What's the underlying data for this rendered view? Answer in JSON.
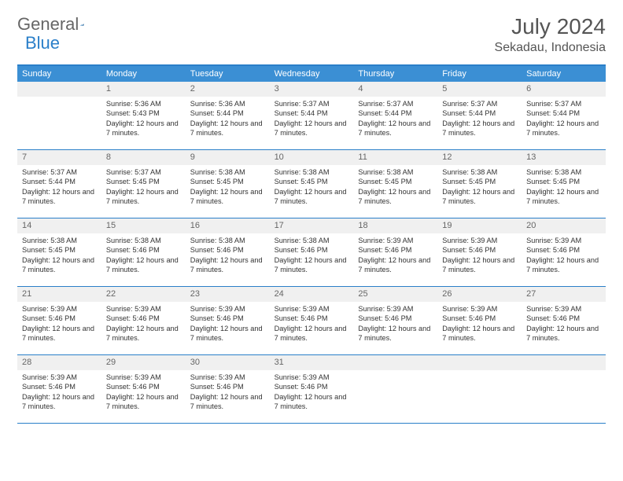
{
  "logo": {
    "general": "General",
    "blue": "Blue"
  },
  "title": "July 2024",
  "location": "Sekadau, Indonesia",
  "weekdays": [
    "Sunday",
    "Monday",
    "Tuesday",
    "Wednesday",
    "Thursday",
    "Friday",
    "Saturday"
  ],
  "colors": {
    "header_bar": "#3b8fd4",
    "rule": "#2a7fc9",
    "daynum_bg": "#f0f0f0",
    "text": "#333333",
    "muted": "#666666"
  },
  "weeks": [
    [
      {
        "n": "",
        "sunrise": "",
        "sunset": "",
        "daylight": "",
        "empty": true
      },
      {
        "n": "1",
        "sunrise": "5:36 AM",
        "sunset": "5:43 PM",
        "daylight": "12 hours and 7 minutes."
      },
      {
        "n": "2",
        "sunrise": "5:36 AM",
        "sunset": "5:44 PM",
        "daylight": "12 hours and 7 minutes."
      },
      {
        "n": "3",
        "sunrise": "5:37 AM",
        "sunset": "5:44 PM",
        "daylight": "12 hours and 7 minutes."
      },
      {
        "n": "4",
        "sunrise": "5:37 AM",
        "sunset": "5:44 PM",
        "daylight": "12 hours and 7 minutes."
      },
      {
        "n": "5",
        "sunrise": "5:37 AM",
        "sunset": "5:44 PM",
        "daylight": "12 hours and 7 minutes."
      },
      {
        "n": "6",
        "sunrise": "5:37 AM",
        "sunset": "5:44 PM",
        "daylight": "12 hours and 7 minutes."
      }
    ],
    [
      {
        "n": "7",
        "sunrise": "5:37 AM",
        "sunset": "5:44 PM",
        "daylight": "12 hours and 7 minutes."
      },
      {
        "n": "8",
        "sunrise": "5:37 AM",
        "sunset": "5:45 PM",
        "daylight": "12 hours and 7 minutes."
      },
      {
        "n": "9",
        "sunrise": "5:38 AM",
        "sunset": "5:45 PM",
        "daylight": "12 hours and 7 minutes."
      },
      {
        "n": "10",
        "sunrise": "5:38 AM",
        "sunset": "5:45 PM",
        "daylight": "12 hours and 7 minutes."
      },
      {
        "n": "11",
        "sunrise": "5:38 AM",
        "sunset": "5:45 PM",
        "daylight": "12 hours and 7 minutes."
      },
      {
        "n": "12",
        "sunrise": "5:38 AM",
        "sunset": "5:45 PM",
        "daylight": "12 hours and 7 minutes."
      },
      {
        "n": "13",
        "sunrise": "5:38 AM",
        "sunset": "5:45 PM",
        "daylight": "12 hours and 7 minutes."
      }
    ],
    [
      {
        "n": "14",
        "sunrise": "5:38 AM",
        "sunset": "5:45 PM",
        "daylight": "12 hours and 7 minutes."
      },
      {
        "n": "15",
        "sunrise": "5:38 AM",
        "sunset": "5:46 PM",
        "daylight": "12 hours and 7 minutes."
      },
      {
        "n": "16",
        "sunrise": "5:38 AM",
        "sunset": "5:46 PM",
        "daylight": "12 hours and 7 minutes."
      },
      {
        "n": "17",
        "sunrise": "5:38 AM",
        "sunset": "5:46 PM",
        "daylight": "12 hours and 7 minutes."
      },
      {
        "n": "18",
        "sunrise": "5:39 AM",
        "sunset": "5:46 PM",
        "daylight": "12 hours and 7 minutes."
      },
      {
        "n": "19",
        "sunrise": "5:39 AM",
        "sunset": "5:46 PM",
        "daylight": "12 hours and 7 minutes."
      },
      {
        "n": "20",
        "sunrise": "5:39 AM",
        "sunset": "5:46 PM",
        "daylight": "12 hours and 7 minutes."
      }
    ],
    [
      {
        "n": "21",
        "sunrise": "5:39 AM",
        "sunset": "5:46 PM",
        "daylight": "12 hours and 7 minutes."
      },
      {
        "n": "22",
        "sunrise": "5:39 AM",
        "sunset": "5:46 PM",
        "daylight": "12 hours and 7 minutes."
      },
      {
        "n": "23",
        "sunrise": "5:39 AM",
        "sunset": "5:46 PM",
        "daylight": "12 hours and 7 minutes."
      },
      {
        "n": "24",
        "sunrise": "5:39 AM",
        "sunset": "5:46 PM",
        "daylight": "12 hours and 7 minutes."
      },
      {
        "n": "25",
        "sunrise": "5:39 AM",
        "sunset": "5:46 PM",
        "daylight": "12 hours and 7 minutes."
      },
      {
        "n": "26",
        "sunrise": "5:39 AM",
        "sunset": "5:46 PM",
        "daylight": "12 hours and 7 minutes."
      },
      {
        "n": "27",
        "sunrise": "5:39 AM",
        "sunset": "5:46 PM",
        "daylight": "12 hours and 7 minutes."
      }
    ],
    [
      {
        "n": "28",
        "sunrise": "5:39 AM",
        "sunset": "5:46 PM",
        "daylight": "12 hours and 7 minutes."
      },
      {
        "n": "29",
        "sunrise": "5:39 AM",
        "sunset": "5:46 PM",
        "daylight": "12 hours and 7 minutes."
      },
      {
        "n": "30",
        "sunrise": "5:39 AM",
        "sunset": "5:46 PM",
        "daylight": "12 hours and 7 minutes."
      },
      {
        "n": "31",
        "sunrise": "5:39 AM",
        "sunset": "5:46 PM",
        "daylight": "12 hours and 7 minutes."
      },
      {
        "n": "",
        "sunrise": "",
        "sunset": "",
        "daylight": "",
        "empty": true
      },
      {
        "n": "",
        "sunrise": "",
        "sunset": "",
        "daylight": "",
        "empty": true
      },
      {
        "n": "",
        "sunrise": "",
        "sunset": "",
        "daylight": "",
        "empty": true
      }
    ]
  ],
  "labels": {
    "sunrise": "Sunrise: ",
    "sunset": "Sunset: ",
    "daylight": "Daylight: "
  }
}
